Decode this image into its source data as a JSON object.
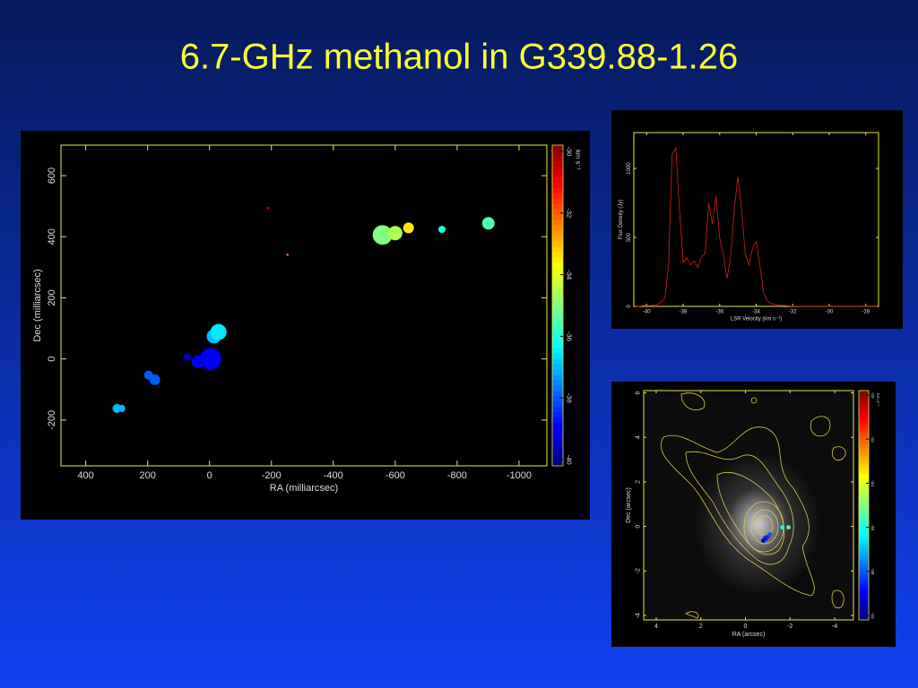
{
  "title": "6.7-GHz methanol in G339.88-1.26",
  "chart_data": [
    {
      "type": "scatter",
      "xlabel": "RA (milliarcsec)",
      "ylabel": "Dec (milliarcsec)",
      "xlim": [
        480,
        -1090
      ],
      "ylim": [
        -350,
        700
      ],
      "xticks": [
        400,
        200,
        0,
        -200,
        -400,
        -600,
        -800,
        -1000
      ],
      "yticks": [
        -200,
        0,
        200,
        400,
        600
      ],
      "x": [
        299,
        284,
        197,
        177,
        72,
        38,
        -3,
        -14,
        -29,
        -188,
        -252,
        -559,
        -600,
        -643,
        -751,
        -901
      ],
      "y": [
        -162,
        -162,
        -53,
        -68,
        6,
        -9,
        0,
        74,
        88,
        494,
        341,
        406,
        412,
        429,
        424,
        444
      ],
      "sizes": [
        25,
        16,
        25,
        36,
        16,
        49,
        144,
        64,
        81,
        2,
        2,
        121,
        64,
        36,
        16,
        49
      ],
      "velocity": [
        -37,
        -37,
        -38,
        -38,
        -39.5,
        -39,
        -39,
        -37,
        -36.5,
        -30.5,
        -32,
        -35,
        -34.5,
        -33.5,
        -36,
        -35.5
      ],
      "colorbar": {
        "label": "km s⁻¹",
        "lim": [
          -40.2,
          -29.8
        ],
        "ticks": [
          -30,
          -32,
          -34,
          -36,
          -38,
          -40
        ]
      }
    },
    {
      "type": "line",
      "xlabel": "LSR Velocity (km s⁻¹)",
      "ylabel": "Flux Density (Jy)",
      "color": "#d42020",
      "xlim": [
        -40.7,
        -27.3
      ],
      "ylim": [
        0,
        1260
      ],
      "xticks": [
        -40,
        -38,
        -36,
        -34,
        -32,
        -30,
        -28
      ],
      "yticks": [
        0,
        500,
        1000
      ],
      "x": [
        -40.6,
        -40.4,
        -40.2,
        -40.0,
        -39.8,
        -39.6,
        -39.4,
        -39.2,
        -39.0,
        -38.8,
        -38.6,
        -38.4,
        -38.2,
        -38.0,
        -37.8,
        -37.6,
        -37.4,
        -37.2,
        -37.0,
        -36.8,
        -36.6,
        -36.4,
        -36.2,
        -36.0,
        -35.8,
        -35.6,
        -35.4,
        -35.2,
        -35.0,
        -34.8,
        -34.6,
        -34.4,
        -34.2,
        -34.0,
        -33.8,
        -33.6,
        -33.4,
        -33.2,
        -33.0,
        -32.8,
        -32.6,
        -32.4,
        -32.2,
        -32.0,
        -31.5,
        -30.0,
        -28.5,
        -27.4
      ],
      "values": [
        0,
        0,
        5,
        5,
        5,
        10,
        15,
        30,
        60,
        300,
        1100,
        1150,
        700,
        320,
        350,
        300,
        330,
        280,
        360,
        380,
        750,
        600,
        800,
        500,
        380,
        200,
        350,
        700,
        940,
        700,
        380,
        300,
        420,
        470,
        300,
        100,
        40,
        20,
        15,
        10,
        8,
        5,
        3,
        2,
        0,
        0,
        0,
        0
      ]
    },
    {
      "type": "scatter",
      "xlabel": "RA (arcsec)",
      "ylabel": "Dec (arcsec)",
      "xlim": [
        4.56,
        -4.84
      ],
      "ylim": [
        -4.2,
        6.1
      ],
      "xticks": [
        4,
        2,
        0,
        -2,
        -4
      ],
      "yticks": [
        -4,
        -2,
        0,
        2,
        4,
        6
      ],
      "x": [
        -1.04,
        -1.65,
        -1.93,
        -0.92,
        -1.1,
        -0.8
      ],
      "y": [
        -0.44,
        -0.04,
        -0.04,
        -0.52,
        -0.36,
        -0.64
      ],
      "sizes": [
        9,
        9,
        9,
        16,
        9,
        9
      ],
      "velocity": [
        -31,
        -36,
        -35.5,
        -38.5,
        -38,
        -39.5
      ],
      "colorbar": {
        "label": "km s⁻¹",
        "lim": [
          -40.2,
          -29.8
        ],
        "ticks": [
          -30,
          -32,
          -34,
          -36,
          -38,
          -40
        ]
      }
    }
  ]
}
